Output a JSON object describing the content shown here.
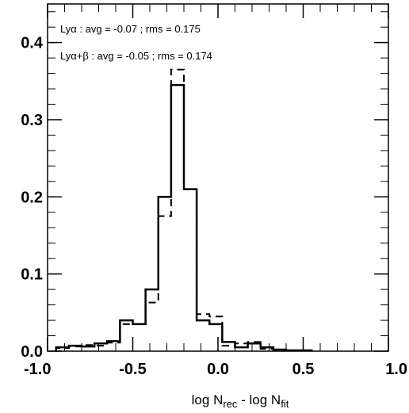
{
  "chart_data": {
    "type": "line",
    "xlabel": {
      "main": "log N",
      "sub1": "rec",
      "mid": " - log N",
      "sub2": "fit"
    },
    "ylabel": "",
    "xlim": [
      -1.0,
      1.0
    ],
    "ylim": [
      0.0,
      0.45
    ],
    "xticks": [
      {
        "value": -1.0,
        "label": "-1.0"
      },
      {
        "value": -0.5,
        "label": "-0.5"
      },
      {
        "value": 0.0,
        "label": "0.0"
      },
      {
        "value": 0.5,
        "label": "0.5"
      },
      {
        "value": 1.0,
        "label": "1.0"
      }
    ],
    "yticks": [
      {
        "value": 0.0,
        "label": "0.0"
      },
      {
        "value": 0.1,
        "label": "0.1"
      },
      {
        "value": 0.2,
        "label": "0.2"
      },
      {
        "value": 0.3,
        "label": "0.3"
      },
      {
        "value": 0.4,
        "label": "0.4"
      }
    ],
    "annotations": [
      "Lyα : avg = -0.07 ; rms = 0.175",
      "Lyα+β : avg = -0.05 ; rms = 0.174"
    ],
    "bin_edges": [
      -0.95,
      -0.875,
      -0.8,
      -0.725,
      -0.65,
      -0.575,
      -0.5,
      -0.425,
      -0.35,
      -0.275,
      -0.2,
      -0.125,
      -0.05,
      0.025,
      0.1,
      0.175,
      0.25,
      0.325,
      0.4,
      0.475,
      0.55
    ],
    "series": [
      {
        "style": "solid",
        "values": [
          0.005,
          0.007,
          0.006,
          0.01,
          0.013,
          0.04,
          0.035,
          0.08,
          0.2,
          0.345,
          0.21,
          0.04,
          0.035,
          0.012,
          0.005,
          0.01,
          0.005,
          0.002,
          0.001,
          0.001
        ]
      },
      {
        "style": "dashed",
        "values": [
          0.004,
          0.006,
          0.008,
          0.007,
          0.011,
          0.035,
          0.035,
          0.063,
          0.175,
          0.365,
          0.21,
          0.048,
          0.045,
          0.007,
          0.01,
          0.012,
          0.003,
          0.001,
          0.001,
          0.001
        ]
      }
    ]
  }
}
